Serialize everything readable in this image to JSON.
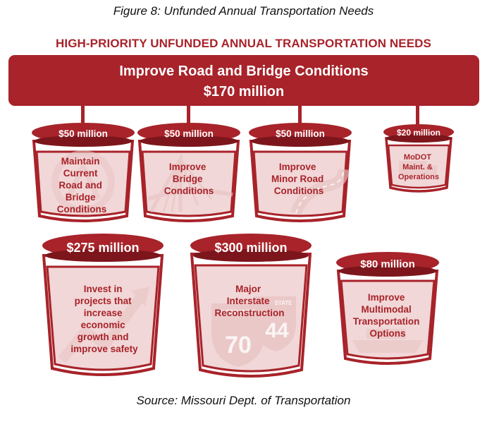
{
  "figure_caption": "Figure 8: Unfunded Annual Transportation Needs",
  "heading": "HIGH-PRIORITY UNFUNDED ANNUAL TRANSPORTATION NEEDS",
  "banner": {
    "title": "Improve Road and Bridge Conditions",
    "amount": "$170 million"
  },
  "buckets": [
    {
      "amount": "$50 million",
      "label": [
        "Maintain",
        "Current",
        "Road and",
        "Bridge",
        "Conditions"
      ]
    },
    {
      "amount": "$50 million",
      "label": [
        "Improve",
        "Bridge",
        "Conditions"
      ]
    },
    {
      "amount": "$50 million",
      "label": [
        "Improve",
        "Minor Road",
        "Conditions"
      ]
    },
    {
      "amount": "$20 million",
      "label": [
        "MoDOT",
        "Maint. &",
        "Operations"
      ]
    },
    {
      "amount": "$275 million",
      "label": [
        "Invest in",
        "projects that",
        "increase",
        "economic",
        "growth and",
        "improve safety"
      ]
    },
    {
      "amount": "$300 million",
      "label": [
        "Major",
        "Interstate",
        "Reconstruction"
      ]
    },
    {
      "amount": "$80 million",
      "label": [
        "Improve",
        "Multimodal",
        "Transportation",
        "Options"
      ]
    }
  ],
  "sign_text": {
    "interstate": "INTERSTATE",
    "num70": "70",
    "num44": "44",
    "state": "STATE"
  },
  "colors": {
    "primary_red": "#a8232a",
    "light_red": "#f1d7d7",
    "watermark": "#e9c4c4"
  },
  "source_caption": "Source: Missouri Dept. of Transportation"
}
